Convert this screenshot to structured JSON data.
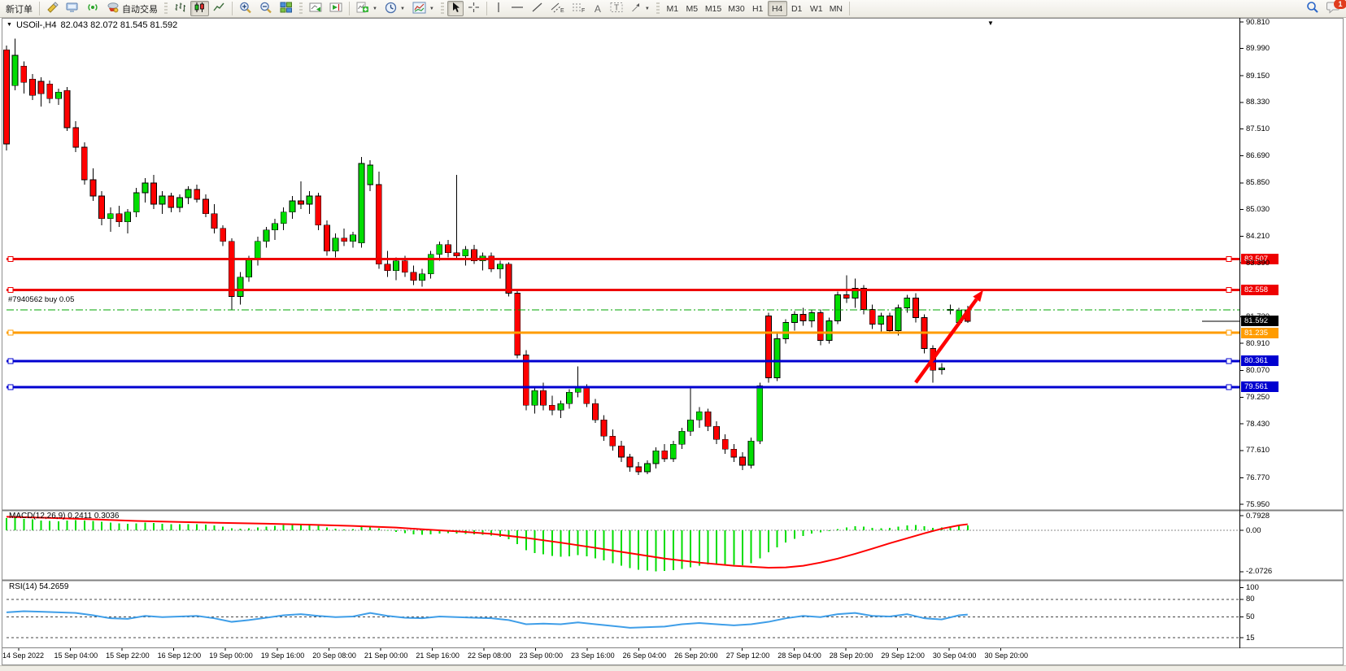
{
  "window": {
    "symbol_period": "USOil-,H4",
    "ohlc": "82.043 82.072 81.545 81.592"
  },
  "toolbar": {
    "new_order": "新订单",
    "autotrading": "自动交易",
    "timeframes": [
      "M1",
      "M5",
      "M15",
      "M30",
      "H1",
      "H4",
      "D1",
      "W1",
      "MN"
    ],
    "active_timeframe": "H4",
    "chat_badge": "1",
    "icon_glyphs": {
      "channel": "E",
      "fibonacci": "F",
      "text": "A",
      "text_label": "T"
    },
    "icons": [
      "metaeditor-icon",
      "market-icon",
      "signals-icon",
      "autotrading-icon",
      "bar-chart-icon",
      "candlestick-chart-icon",
      "line-chart-icon",
      "zoom-in-icon",
      "zoom-out-icon",
      "tile-windows-icon",
      "autoscroll-icon",
      "chart-shift-icon",
      "add-indicator-icon",
      "periods-clock-icon",
      "templates-icon",
      "cursor-icon",
      "crosshair-icon",
      "vertical-line-icon",
      "horizontal-line-icon",
      "trendline-icon",
      "channel-icon",
      "fibonacci-icon",
      "text-icon",
      "text-label-icon",
      "arrows-tool-icon",
      "search-icon",
      "chat-icon"
    ]
  },
  "chart_data": {
    "type": "candlestick",
    "title": "USOil-,H4",
    "timeframe": "H4",
    "price_axis": {
      "ticks": [
        90.81,
        89.99,
        89.15,
        88.33,
        87.51,
        86.69,
        85.85,
        85.03,
        84.21,
        83.39,
        81.73,
        80.91,
        80.07,
        79.25,
        78.43,
        77.61,
        76.77,
        75.95
      ],
      "range": [
        75.95,
        90.81
      ]
    },
    "time_axis": [
      "14 Sep 2022",
      "15 Sep 04:00",
      "15 Sep 22:00",
      "16 Sep 12:00",
      "19 Sep 00:00",
      "19 Sep 16:00",
      "20 Sep 08:00",
      "21 Sep 00:00",
      "21 Sep 16:00",
      "22 Sep 08:00",
      "23 Sep 00:00",
      "23 Sep 16:00",
      "26 Sep 04:00",
      "26 Sep 20:00",
      "27 Sep 12:00",
      "28 Sep 04:00",
      "28 Sep 20:00",
      "29 Sep 12:00",
      "30 Sep 04:00",
      "30 Sep 20:00"
    ],
    "candles": [
      [
        89.95,
        90.08,
        86.85,
        87.05
      ],
      [
        88.85,
        90.3,
        88.7,
        89.78
      ],
      [
        89.45,
        89.6,
        88.6,
        88.95
      ],
      [
        89.05,
        89.2,
        88.4,
        88.55
      ],
      [
        88.98,
        89.1,
        88.2,
        88.6
      ],
      [
        88.9,
        89.0,
        88.3,
        88.45
      ],
      [
        88.45,
        88.75,
        88.25,
        88.65
      ],
      [
        88.7,
        88.8,
        87.45,
        87.55
      ],
      [
        87.55,
        87.75,
        86.8,
        86.95
      ],
      [
        86.95,
        87.1,
        85.8,
        85.95
      ],
      [
        85.95,
        86.3,
        85.3,
        85.45
      ],
      [
        85.45,
        85.6,
        84.55,
        84.75
      ],
      [
        84.75,
        85.1,
        84.35,
        84.9
      ],
      [
        84.9,
        85.15,
        84.5,
        84.65
      ],
      [
        84.65,
        85.05,
        84.3,
        84.95
      ],
      [
        84.95,
        85.7,
        84.8,
        85.55
      ],
      [
        85.55,
        86.0,
        85.25,
        85.85
      ],
      [
        85.85,
        86.1,
        85.05,
        85.2
      ],
      [
        85.2,
        85.6,
        84.9,
        85.45
      ],
      [
        85.45,
        85.55,
        84.95,
        85.1
      ],
      [
        85.1,
        85.5,
        84.95,
        85.4
      ],
      [
        85.4,
        85.75,
        85.2,
        85.65
      ],
      [
        85.65,
        85.8,
        85.25,
        85.35
      ],
      [
        85.35,
        85.5,
        84.8,
        84.9
      ],
      [
        84.9,
        85.2,
        84.3,
        84.45
      ],
      [
        84.45,
        84.55,
        83.9,
        84.05
      ],
      [
        84.05,
        84.15,
        81.95,
        82.35
      ],
      [
        82.35,
        83.1,
        82.1,
        82.95
      ],
      [
        82.95,
        83.6,
        82.8,
        83.5
      ],
      [
        83.5,
        84.2,
        83.3,
        84.05
      ],
      [
        84.05,
        84.5,
        83.85,
        84.4
      ],
      [
        84.4,
        84.75,
        84.1,
        84.6
      ],
      [
        84.6,
        85.1,
        84.4,
        84.95
      ],
      [
        84.95,
        85.45,
        84.75,
        85.3
      ],
      [
        85.3,
        85.9,
        85.05,
        85.2
      ],
      [
        85.2,
        85.6,
        84.9,
        85.45
      ],
      [
        85.45,
        85.55,
        84.4,
        84.55
      ],
      [
        84.55,
        84.7,
        83.6,
        83.75
      ],
      [
        83.75,
        84.3,
        83.55,
        84.15
      ],
      [
        84.15,
        84.45,
        83.9,
        84.05
      ],
      [
        84.05,
        84.35,
        83.85,
        84.25
      ],
      [
        84.0,
        86.65,
        83.85,
        86.45
      ],
      [
        85.8,
        86.55,
        85.6,
        86.4
      ],
      [
        85.8,
        86.2,
        83.2,
        83.35
      ],
      [
        83.35,
        83.75,
        82.95,
        83.15
      ],
      [
        83.15,
        83.55,
        82.85,
        83.45
      ],
      [
        83.45,
        83.6,
        82.95,
        83.1
      ],
      [
        83.1,
        83.3,
        82.7,
        82.85
      ],
      [
        82.85,
        83.2,
        82.65,
        83.05
      ],
      [
        83.05,
        83.75,
        82.9,
        83.65
      ],
      [
        83.65,
        84.05,
        83.45,
        83.95
      ],
      [
        83.95,
        84.1,
        83.55,
        83.7
      ],
      [
        83.7,
        86.1,
        83.5,
        83.6
      ],
      [
        83.6,
        83.9,
        83.3,
        83.8
      ],
      [
        83.8,
        83.95,
        83.35,
        83.45
      ],
      [
        83.45,
        83.7,
        83.15,
        83.6
      ],
      [
        83.6,
        83.7,
        83.1,
        83.2
      ],
      [
        83.2,
        83.45,
        82.9,
        83.35
      ],
      [
        83.35,
        83.4,
        82.35,
        82.45
      ],
      [
        82.45,
        82.55,
        80.45,
        80.55
      ],
      [
        80.55,
        80.7,
        78.85,
        79.0
      ],
      [
        79.0,
        79.6,
        78.75,
        79.45
      ],
      [
        79.45,
        79.7,
        78.85,
        79.0
      ],
      [
        79.0,
        79.3,
        78.7,
        78.85
      ],
      [
        78.85,
        79.15,
        78.6,
        79.05
      ],
      [
        79.05,
        79.5,
        78.9,
        79.4
      ],
      [
        79.4,
        80.2,
        79.25,
        79.55
      ],
      [
        79.55,
        79.65,
        78.95,
        79.05
      ],
      [
        79.05,
        79.2,
        78.45,
        78.55
      ],
      [
        78.55,
        78.7,
        77.9,
        78.05
      ],
      [
        78.05,
        78.25,
        77.6,
        77.75
      ],
      [
        77.75,
        77.9,
        77.25,
        77.4
      ],
      [
        77.4,
        77.5,
        76.95,
        77.1
      ],
      [
        77.1,
        77.25,
        76.85,
        76.95
      ],
      [
        76.95,
        77.3,
        76.88,
        77.2
      ],
      [
        77.2,
        77.7,
        77.05,
        77.6
      ],
      [
        77.6,
        77.8,
        77.25,
        77.35
      ],
      [
        77.35,
        77.9,
        77.25,
        77.8
      ],
      [
        77.8,
        78.3,
        77.65,
        78.2
      ],
      [
        78.2,
        79.55,
        78.05,
        78.55
      ],
      [
        78.55,
        78.95,
        78.3,
        78.8
      ],
      [
        78.8,
        78.9,
        78.2,
        78.35
      ],
      [
        78.35,
        78.5,
        77.8,
        77.95
      ],
      [
        77.95,
        78.1,
        77.5,
        77.65
      ],
      [
        77.65,
        77.8,
        77.25,
        77.4
      ],
      [
        77.4,
        77.55,
        77.0,
        77.15
      ],
      [
        77.15,
        78.0,
        77.05,
        77.9
      ],
      [
        77.9,
        79.7,
        77.8,
        79.6
      ],
      [
        81.75,
        81.85,
        79.7,
        79.85
      ],
      [
        79.85,
        81.2,
        79.75,
        81.05
      ],
      [
        81.05,
        81.65,
        80.9,
        81.55
      ],
      [
        81.55,
        81.9,
        81.3,
        81.8
      ],
      [
        81.8,
        82.0,
        81.45,
        81.6
      ],
      [
        81.6,
        81.95,
        81.4,
        81.85
      ],
      [
        81.85,
        81.95,
        80.85,
        81.0
      ],
      [
        81.0,
        81.7,
        80.9,
        81.6
      ],
      [
        81.6,
        82.5,
        81.5,
        82.4
      ],
      [
        82.4,
        83.0,
        82.15,
        82.3
      ],
      [
        82.3,
        82.9,
        82.0,
        82.6
      ],
      [
        82.6,
        82.7,
        81.8,
        81.95
      ],
      [
        81.95,
        82.1,
        81.35,
        81.5
      ],
      [
        81.5,
        81.85,
        81.25,
        81.75
      ],
      [
        81.75,
        81.85,
        81.2,
        81.3
      ],
      [
        81.3,
        82.1,
        81.15,
        82.0
      ],
      [
        82.0,
        82.4,
        81.85,
        82.3
      ],
      [
        82.3,
        82.45,
        81.55,
        81.7
      ],
      [
        81.7,
        81.8,
        80.6,
        80.75
      ],
      [
        80.75,
        80.85,
        79.7,
        80.08
      ],
      [
        80.1,
        80.3,
        79.95,
        80.15
      ],
      [
        81.95,
        82.1,
        81.8,
        81.95
      ],
      [
        81.55,
        82.0,
        81.45,
        81.92
      ],
      [
        81.92,
        82.07,
        81.54,
        81.59
      ]
    ],
    "hlines": [
      {
        "price": 83.507,
        "label": "83.507",
        "color": "#ee0000",
        "badge_bg": "#ee0000",
        "width": 3
      },
      {
        "price": 82.558,
        "label": "82.558",
        "color": "#ee0000",
        "badge_bg": "#ee0000",
        "width": 3
      },
      {
        "price": 81.235,
        "label": "81.235",
        "color": "#ff9c00",
        "badge_bg": "#ff9c00",
        "width": 3
      },
      {
        "price": 80.361,
        "label": "80.361",
        "color": "#0000d0",
        "badge_bg": "#0000d0",
        "width": 3
      },
      {
        "price": 79.561,
        "label": "79.561",
        "color": "#0000d0",
        "badge_bg": "#0000d0",
        "width": 3
      }
    ],
    "current_price": {
      "value": 81.592,
      "label": "81.592",
      "badge_bg": "#000000",
      "line_color": "#000000"
    },
    "order_line": {
      "label": "#7940562 buy 0.05",
      "price": 81.94,
      "color": "#00a400",
      "style": "dash-dot"
    },
    "arrow": {
      "color": "#ff0000",
      "from": {
        "bar": 105,
        "price": 79.7
      },
      "to": {
        "bar": 112.8,
        "price": 82.55
      }
    },
    "macd": {
      "label": "MACD(12,26,9) 0.2411 0.3036",
      "params": "12,26,9",
      "value_main": 0.2411,
      "value_signal": 0.3036,
      "axis_values": [
        0.7928,
        0.0,
        -2.0726
      ],
      "histogram_color": "#00dd00",
      "signal_color": "#ff0000",
      "histogram": [
        0.62,
        0.66,
        0.58,
        0.55,
        0.5,
        0.47,
        0.44,
        0.48,
        0.52,
        0.5,
        0.46,
        0.42,
        0.38,
        0.35,
        0.33,
        0.35,
        0.38,
        0.36,
        0.33,
        0.31,
        0.3,
        0.31,
        0.3,
        0.28,
        0.24,
        0.18,
        0.1,
        0.08,
        0.1,
        0.14,
        0.18,
        0.22,
        0.26,
        0.29,
        0.3,
        0.28,
        0.22,
        0.14,
        0.08,
        0.05,
        0.06,
        0.18,
        0.22,
        0.1,
        -0.02,
        -0.08,
        -0.14,
        -0.2,
        -0.22,
        -0.2,
        -0.16,
        -0.14,
        -0.16,
        -0.18,
        -0.2,
        -0.22,
        -0.26,
        -0.32,
        -0.45,
        -0.7,
        -1.0,
        -1.15,
        -1.2,
        -1.28,
        -1.32,
        -1.3,
        -1.25,
        -1.3,
        -1.4,
        -1.52,
        -1.65,
        -1.78,
        -1.9,
        -1.98,
        -2.03,
        -2.07,
        -2.05,
        -2.0,
        -1.93,
        -1.85,
        -1.78,
        -1.72,
        -1.7,
        -1.72,
        -1.74,
        -1.76,
        -1.65,
        -1.4,
        -1.1,
        -0.85,
        -0.62,
        -0.42,
        -0.28,
        -0.16,
        -0.1,
        -0.04,
        0.06,
        0.14,
        0.2,
        0.18,
        0.12,
        0.1,
        0.12,
        0.18,
        0.24,
        0.26,
        0.2,
        0.12,
        0.14,
        0.2,
        0.24,
        0.2411
      ],
      "signal_points": [
        [
          0,
          0.68
        ],
        [
          5,
          0.62
        ],
        [
          10,
          0.55
        ],
        [
          15,
          0.47
        ],
        [
          20,
          0.42
        ],
        [
          25,
          0.37
        ],
        [
          30,
          0.33
        ],
        [
          35,
          0.28
        ],
        [
          40,
          0.22
        ],
        [
          45,
          0.14
        ],
        [
          48,
          0.05
        ],
        [
          52,
          -0.05
        ],
        [
          56,
          -0.18
        ],
        [
          60,
          -0.38
        ],
        [
          64,
          -0.62
        ],
        [
          68,
          -0.88
        ],
        [
          72,
          -1.15
        ],
        [
          76,
          -1.42
        ],
        [
          80,
          -1.62
        ],
        [
          84,
          -1.78
        ],
        [
          88,
          -1.88
        ],
        [
          90,
          -1.86
        ],
        [
          92,
          -1.78
        ],
        [
          94,
          -1.62
        ],
        [
          96,
          -1.42
        ],
        [
          98,
          -1.18
        ],
        [
          100,
          -0.92
        ],
        [
          102,
          -0.65
        ],
        [
          104,
          -0.4
        ],
        [
          106,
          -0.15
        ],
        [
          108,
          0.08
        ],
        [
          110,
          0.25
        ],
        [
          111,
          0.3036
        ]
      ]
    },
    "rsi": {
      "label": "RSI(14) 54.2659",
      "period": 14,
      "value": 54.2659,
      "axis_values": [
        100,
        80,
        50,
        15
      ],
      "level_lines": [
        80,
        50,
        15
      ],
      "line_color": "#3f9ee8",
      "points": [
        [
          0,
          58
        ],
        [
          2,
          60
        ],
        [
          4,
          59
        ],
        [
          6,
          58
        ],
        [
          8,
          57
        ],
        [
          10,
          53
        ],
        [
          12,
          48
        ],
        [
          14,
          47
        ],
        [
          16,
          52
        ],
        [
          18,
          50
        ],
        [
          20,
          51
        ],
        [
          22,
          52
        ],
        [
          24,
          48
        ],
        [
          26,
          42
        ],
        [
          28,
          45
        ],
        [
          30,
          49
        ],
        [
          32,
          53
        ],
        [
          34,
          55
        ],
        [
          36,
          52
        ],
        [
          38,
          50
        ],
        [
          40,
          51
        ],
        [
          42,
          57
        ],
        [
          44,
          52
        ],
        [
          46,
          49
        ],
        [
          48,
          48
        ],
        [
          50,
          51
        ],
        [
          52,
          50
        ],
        [
          54,
          49
        ],
        [
          56,
          48
        ],
        [
          58,
          45
        ],
        [
          60,
          38
        ],
        [
          62,
          39
        ],
        [
          64,
          38
        ],
        [
          66,
          41
        ],
        [
          68,
          38
        ],
        [
          70,
          35
        ],
        [
          72,
          32
        ],
        [
          74,
          33
        ],
        [
          76,
          34
        ],
        [
          78,
          38
        ],
        [
          80,
          40
        ],
        [
          82,
          38
        ],
        [
          84,
          36
        ],
        [
          86,
          38
        ],
        [
          88,
          42
        ],
        [
          90,
          48
        ],
        [
          92,
          52
        ],
        [
          94,
          50
        ],
        [
          96,
          55
        ],
        [
          98,
          57
        ],
        [
          100,
          52
        ],
        [
          102,
          51
        ],
        [
          104,
          55
        ],
        [
          106,
          48
        ],
        [
          108,
          46
        ],
        [
          110,
          53
        ],
        [
          111,
          54.2659
        ]
      ]
    }
  }
}
